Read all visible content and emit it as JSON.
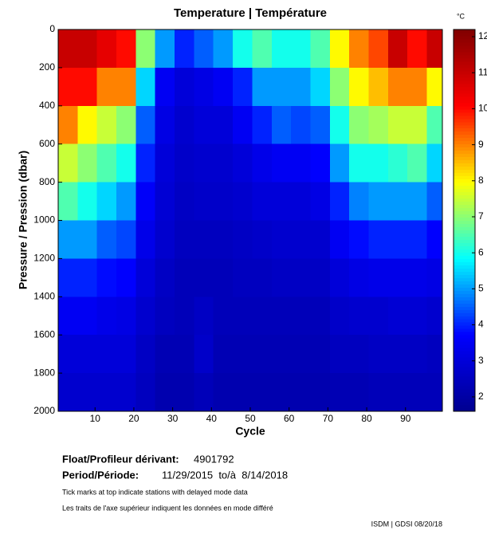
{
  "chart_data": {
    "type": "heatmap",
    "title": "Temperature | Température",
    "xlabel": "Cycle",
    "ylabel": "Pressure / Pression (dbar)",
    "colorbar_label": "°C",
    "xbins": [
      0.5,
      5.5,
      10.5,
      15.5,
      20.5,
      25.5,
      30.5,
      35.5,
      40.5,
      45.5,
      50.5,
      55.5,
      60.5,
      65.5,
      70.5,
      75.5,
      80.5,
      85.5,
      90.5,
      95.5,
      99.5
    ],
    "ybins": [
      0,
      200,
      400,
      600,
      800,
      1000,
      1200,
      1400,
      1600,
      1800,
      2000
    ],
    "z": [
      [
        11,
        11,
        10.5,
        10,
        7,
        5,
        4,
        4.5,
        5,
        6,
        6.5,
        6,
        6,
        6.5,
        8,
        9,
        9.5,
        11,
        10,
        11
      ],
      [
        10,
        10,
        9,
        9,
        5.5,
        3.5,
        3,
        3.2,
        3.5,
        4,
        5,
        5,
        5,
        5.5,
        7,
        8,
        8.5,
        9,
        9,
        8
      ],
      [
        9,
        8,
        7.5,
        7,
        4.5,
        3.2,
        2.8,
        3,
        3,
        3.5,
        4,
        4.5,
        4.3,
        4.5,
        6,
        7,
        7.2,
        7.5,
        7.5,
        6.5
      ],
      [
        7.5,
        7,
        6.5,
        6,
        4,
        3,
        2.7,
        2.8,
        2.8,
        3,
        3.3,
        3.5,
        3.5,
        3.7,
        5,
        6,
        6,
        6.2,
        6.5,
        5.5
      ],
      [
        6.5,
        6,
        5.5,
        5,
        3.6,
        2.9,
        2.6,
        2.7,
        2.7,
        2.8,
        3,
        3,
        3,
        3.2,
        4,
        4.8,
        5,
        5,
        5,
        4.5
      ],
      [
        5,
        5,
        4.5,
        4.3,
        3.3,
        2.8,
        2.5,
        2.5,
        2.5,
        2.6,
        2.7,
        2.8,
        2.8,
        2.8,
        3.5,
        3.8,
        4,
        4,
        4,
        3.7
      ],
      [
        4,
        4,
        3.8,
        3.7,
        3,
        2.6,
        2.4,
        2.4,
        2.4,
        2.5,
        2.5,
        2.6,
        2.6,
        2.6,
        3,
        3.2,
        3.3,
        3.3,
        3.3,
        3.2
      ],
      [
        3.5,
        3.5,
        3.3,
        3.2,
        2.8,
        2.5,
        2.4,
        2.6,
        2.4,
        2.4,
        2.4,
        2.4,
        2.4,
        2.4,
        2.7,
        2.8,
        2.8,
        2.9,
        2.9,
        2.8
      ],
      [
        3,
        3,
        3,
        3,
        2.6,
        2.3,
        2.3,
        2.7,
        2.3,
        2.3,
        2.3,
        2.3,
        2.3,
        2.3,
        2.5,
        2.5,
        2.6,
        2.6,
        2.6,
        2.5
      ],
      [
        2.8,
        2.8,
        2.8,
        2.8,
        2.5,
        2.2,
        2.2,
        2.4,
        2.2,
        2.2,
        2.2,
        2.2,
        2.2,
        2.2,
        2.3,
        2.3,
        2.4,
        2.4,
        2.4,
        2.4
      ]
    ],
    "colormap": [
      "#00008f",
      "#0000ff",
      "#00ffff",
      "#ffff00",
      "#ff0000",
      "#800000"
    ],
    "xlim": [
      0.5,
      99.5
    ],
    "xticks": [
      10,
      20,
      30,
      40,
      50,
      60,
      70,
      80,
      90
    ],
    "ylim": [
      0,
      2000
    ],
    "yticks": [
      0,
      200,
      400,
      600,
      800,
      1000,
      1200,
      1400,
      1600,
      1800,
      2000
    ],
    "y_inverted": true,
    "zlim": [
      1.6,
      12.2
    ],
    "zticks": [
      2,
      3,
      4,
      5,
      6,
      7,
      8,
      9,
      10,
      11,
      12
    ]
  },
  "info": {
    "float_label": "Float/Profileur dérivant:",
    "float_id": "4901792",
    "period_label": "Period/Période:",
    "period": "11/29/2015  to/à  8/14/2018",
    "note_en": "Tick marks at top indicate stations with delayed mode data",
    "note_fr": "Les traits de l'axe supérieur indiquent les données en mode différé",
    "credit": "ISDM | GDSI 08/20/18"
  }
}
